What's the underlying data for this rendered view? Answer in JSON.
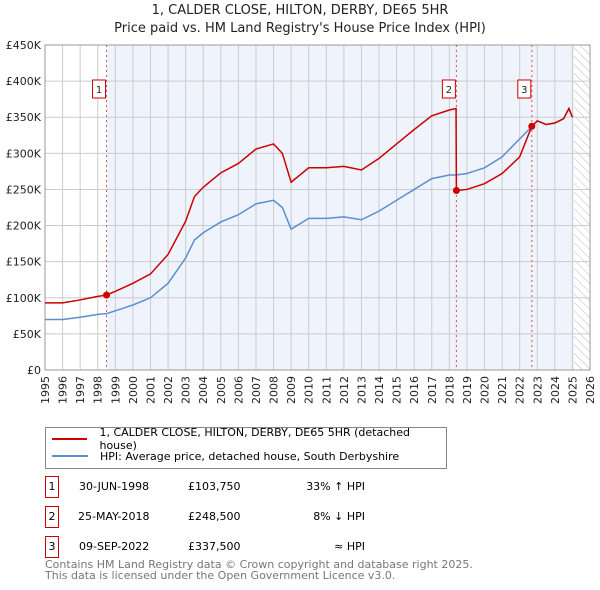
{
  "chart_data": {
    "type": "line",
    "title": "1, CALDER CLOSE, HILTON, DERBY, DE65 5HR",
    "subtitle": "Price paid vs. HM Land Registry's House Price Index (HPI)",
    "xlim": [
      1995,
      2026
    ],
    "ylim": [
      0,
      450000
    ],
    "x_ticks": [
      "1995",
      "1996",
      "1997",
      "1998",
      "1999",
      "2000",
      "2001",
      "2002",
      "2003",
      "2004",
      "2005",
      "2006",
      "2007",
      "2008",
      "2009",
      "2010",
      "2011",
      "2012",
      "2013",
      "2014",
      "2015",
      "2016",
      "2017",
      "2018",
      "2019",
      "2020",
      "2021",
      "2022",
      "2023",
      "2024",
      "2025",
      "2026"
    ],
    "y_ticks": [
      {
        "v": 0,
        "label": "£0"
      },
      {
        "v": 50000,
        "label": "£50K"
      },
      {
        "v": 100000,
        "label": "£100K"
      },
      {
        "v": 150000,
        "label": "£150K"
      },
      {
        "v": 200000,
        "label": "£200K"
      },
      {
        "v": 250000,
        "label": "£250K"
      },
      {
        "v": 300000,
        "label": "£300K"
      },
      {
        "v": 350000,
        "label": "£350K"
      },
      {
        "v": 400000,
        "label": "£400K"
      },
      {
        "v": 450000,
        "label": "£450K"
      }
    ],
    "grid": true,
    "series": [
      {
        "name": "1, CALDER CLOSE, HILTON, DERBY, DE65 5HR (detached house)",
        "color": "#cc0000",
        "x": [
          1995,
          1996,
          1997,
          1998,
          1998.5,
          1999,
          2000,
          2001,
          2002,
          2003,
          2003.5,
          2004,
          2005,
          2006,
          2007,
          2008,
          2008.5,
          2009,
          2010,
          2011,
          2012,
          2013,
          2014,
          2015,
          2016,
          2017,
          2018,
          2018.38,
          2018.4,
          2019,
          2020,
          2021,
          2022,
          2022.69,
          2023,
          2023.5,
          2024,
          2024.5,
          2024.8,
          2025
        ],
        "y": [
          93000,
          93000,
          97000,
          102000,
          103750,
          109000,
          120000,
          133000,
          160000,
          206000,
          240000,
          253000,
          273000,
          286000,
          306000,
          313000,
          300000,
          260000,
          280000,
          280000,
          282000,
          277000,
          293000,
          313000,
          333000,
          352000,
          360000,
          362000,
          248500,
          250000,
          258000,
          272000,
          295000,
          337500,
          345000,
          340000,
          342000,
          348000,
          362000,
          350000
        ]
      },
      {
        "name": "HPI: Average price, detached house, South Derbyshire",
        "color": "#5b8fd0",
        "x": [
          1995,
          1996,
          1997,
          1998,
          1998.5,
          1999,
          2000,
          2001,
          2002,
          2003,
          2003.5,
          2004,
          2005,
          2006,
          2007,
          2008,
          2008.5,
          2009,
          2010,
          2011,
          2012,
          2013,
          2014,
          2015,
          2016,
          2017,
          2018,
          2018.38,
          2019,
          2020,
          2021,
          2022,
          2022.69,
          2023,
          2023.5,
          2024,
          2024.5,
          2024.8,
          2025
        ],
        "y": [
          70000,
          70000,
          73000,
          77000,
          78000,
          82000,
          90000,
          100000,
          120000,
          155000,
          180000,
          190000,
          205000,
          215000,
          230000,
          235000,
          225000,
          195000,
          210000,
          210000,
          212000,
          208000,
          220000,
          235000,
          250000,
          265000,
          270000,
          270000,
          272000,
          280000,
          295000,
          320000,
          337000,
          345000,
          340000,
          342000,
          348000,
          362000,
          350000
        ]
      }
    ],
    "sales": [
      {
        "id": "1",
        "x": 1998.5,
        "price": 103750,
        "date": "30-JUN-1998",
        "price_label": "£103,750",
        "hpi": "33% ↑ HPI"
      },
      {
        "id": "2",
        "x": 2018.4,
        "price": 248500,
        "date": "25-MAY-2018",
        "price_label": "£248,500",
        "hpi": "8% ↓ HPI"
      },
      {
        "id": "3",
        "x": 2022.69,
        "price": 337500,
        "date": "09-SEP-2022",
        "price_label": "£337,500",
        "hpi": "≈ HPI"
      }
    ],
    "shaded_range": [
      1998.5,
      2025.1
    ],
    "forecast_hatch": [
      2025.1,
      2026
    ]
  },
  "footer": {
    "line1": "Contains HM Land Registry data © Crown copyright and database right 2025.",
    "line2": "This data is licensed under the Open Government Licence v3.0."
  }
}
